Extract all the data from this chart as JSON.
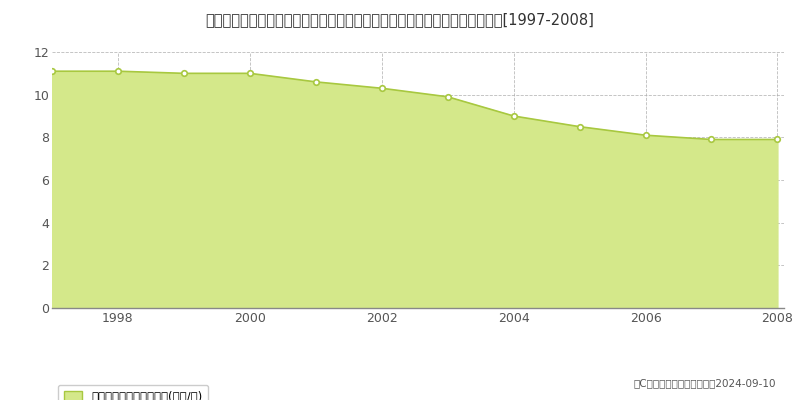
{
  "title": "岐阜県不破郡関ケ原町大字松尾字下矢尻２６５番４　基準地価格　地価推移[1997-2008]",
  "years": [
    1997,
    1998,
    1999,
    2000,
    2001,
    2002,
    2003,
    2004,
    2005,
    2006,
    2007,
    2008
  ],
  "values": [
    11.1,
    11.1,
    11.0,
    11.0,
    10.6,
    10.3,
    9.9,
    9.0,
    8.5,
    8.1,
    7.9,
    7.9
  ],
  "line_color": "#a8c840",
  "fill_color": "#d4e88a",
  "marker_color": "white",
  "marker_edge_color": "#a8c840",
  "ylim": [
    0,
    12
  ],
  "yticks": [
    0,
    2,
    4,
    6,
    8,
    10,
    12
  ],
  "xticks": [
    1998,
    2000,
    2002,
    2004,
    2006,
    2008
  ],
  "bg_color": "#ffffff",
  "grid_color": "#aaaaaa",
  "legend_label": "基準地価格　平均嵪単価(万円/嵪)",
  "copyright_text": "（C）土地価格ドットコム　2024-09-10"
}
